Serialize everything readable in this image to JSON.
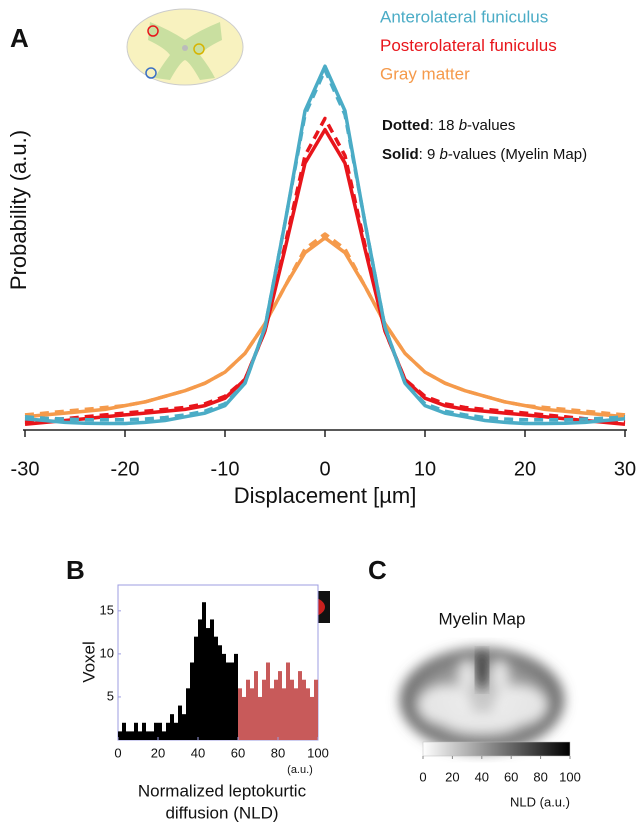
{
  "chart_data": [
    {
      "type": "line",
      "panel": "A",
      "x": [
        -30,
        -28,
        -26,
        -24,
        -22,
        -20,
        -18,
        -16,
        -14,
        -12,
        -10,
        -8,
        -6,
        -4,
        -2,
        0,
        2,
        4,
        6,
        8,
        10,
        12,
        14,
        16,
        18,
        20,
        22,
        24,
        26,
        28,
        30
      ],
      "xlim": [
        -30,
        30
      ],
      "xticks": [
        -30,
        -20,
        -10,
        0,
        10,
        20,
        30
      ],
      "ylim": [
        0,
        1
      ],
      "xlabel": "Displacement [µm]",
      "ylabel": "Probability (a.u.)",
      "series": [
        {
          "name": "Anterolateral funiculus",
          "color": "#4bacc6",
          "values": [
            0.025,
            0.02,
            0.015,
            0.013,
            0.012,
            0.012,
            0.015,
            0.02,
            0.03,
            0.04,
            0.06,
            0.12,
            0.27,
            0.55,
            0.85,
            0.97,
            0.85,
            0.55,
            0.27,
            0.12,
            0.06,
            0.04,
            0.03,
            0.02,
            0.015,
            0.012,
            0.012,
            0.013,
            0.015,
            0.02,
            0.025
          ],
          "dotted_values": [
            0.03,
            0.026,
            0.024,
            0.022,
            0.022,
            0.022,
            0.024,
            0.028,
            0.035,
            0.045,
            0.065,
            0.12,
            0.27,
            0.55,
            0.84,
            0.96,
            0.84,
            0.55,
            0.27,
            0.12,
            0.065,
            0.045,
            0.035,
            0.028,
            0.024,
            0.022,
            0.022,
            0.022,
            0.024,
            0.026,
            0.03
          ]
        },
        {
          "name": "Posterolateral funiculus",
          "color": "#e8151b",
          "values": [
            0.01,
            0.015,
            0.02,
            0.025,
            0.03,
            0.035,
            0.04,
            0.045,
            0.05,
            0.06,
            0.08,
            0.13,
            0.26,
            0.48,
            0.71,
            0.8,
            0.71,
            0.48,
            0.26,
            0.13,
            0.08,
            0.06,
            0.05,
            0.045,
            0.04,
            0.035,
            0.03,
            0.025,
            0.02,
            0.015,
            0.01
          ],
          "dotted_values": [
            0.015,
            0.02,
            0.025,
            0.03,
            0.035,
            0.04,
            0.045,
            0.05,
            0.055,
            0.065,
            0.085,
            0.13,
            0.26,
            0.49,
            0.73,
            0.83,
            0.73,
            0.49,
            0.26,
            0.13,
            0.085,
            0.065,
            0.055,
            0.05,
            0.045,
            0.04,
            0.035,
            0.03,
            0.025,
            0.02,
            0.015
          ]
        },
        {
          "name": "Gray matter",
          "color": "#f59a4b",
          "values": [
            0.03,
            0.035,
            0.04,
            0.045,
            0.05,
            0.06,
            0.07,
            0.085,
            0.1,
            0.12,
            0.15,
            0.2,
            0.28,
            0.38,
            0.47,
            0.51,
            0.47,
            0.38,
            0.28,
            0.2,
            0.15,
            0.12,
            0.1,
            0.085,
            0.07,
            0.06,
            0.05,
            0.045,
            0.04,
            0.035,
            0.03
          ],
          "dotted_values": [
            0.035,
            0.04,
            0.045,
            0.05,
            0.055,
            0.06,
            0.07,
            0.085,
            0.1,
            0.12,
            0.15,
            0.2,
            0.28,
            0.38,
            0.48,
            0.52,
            0.48,
            0.38,
            0.28,
            0.2,
            0.15,
            0.12,
            0.1,
            0.085,
            0.07,
            0.06,
            0.055,
            0.05,
            0.045,
            0.04,
            0.035
          ]
        }
      ],
      "notes": [
        [
          {
            "text": "Dotted",
            "bold": true
          },
          {
            "text": ": 18 "
          },
          {
            "text": "b",
            "italic": true
          },
          {
            "text": "-values"
          }
        ],
        [
          {
            "text": "Solid",
            "bold": true
          },
          {
            "text": ": 9 "
          },
          {
            "text": "b",
            "italic": true
          },
          {
            "text": "-values (Myelin Map)"
          }
        ]
      ]
    },
    {
      "type": "histogram",
      "panel": "B",
      "bins": [
        0,
        2,
        4,
        6,
        8,
        10,
        12,
        14,
        16,
        18,
        20,
        22,
        24,
        26,
        28,
        30,
        32,
        34,
        36,
        38,
        40,
        42,
        44,
        46,
        48,
        50,
        52,
        54,
        56,
        58,
        60,
        62,
        64,
        66,
        68,
        70,
        72,
        74,
        76,
        78,
        80,
        82,
        84,
        86,
        88,
        90,
        92,
        94,
        96,
        98,
        100
      ],
      "xlim": [
        0,
        100
      ],
      "xticks": [
        0,
        20,
        40,
        60,
        80,
        100
      ],
      "ylim": [
        0,
        18
      ],
      "yticks": [
        5,
        10,
        15
      ],
      "xunit": "(a.u.)",
      "xlabel": [
        "Normalized leptokurtic",
        "diffusion (NLD)"
      ],
      "ylabel": "Voxel",
      "series": [
        {
          "color": "#000000",
          "values": [
            1,
            2,
            1,
            1,
            2,
            1,
            2,
            1,
            1,
            2,
            2,
            1,
            2,
            3,
            2,
            4,
            3,
            6,
            9,
            12,
            14,
            16,
            13,
            14,
            12,
            11,
            10,
            9,
            9,
            10,
            null,
            null,
            null,
            null,
            null,
            null,
            null,
            null,
            null,
            null,
            null,
            null,
            null,
            null,
            null,
            null,
            null,
            null,
            null,
            null
          ]
        },
        {
          "color": "#c85a5a",
          "values": [
            null,
            null,
            null,
            null,
            null,
            null,
            null,
            null,
            null,
            null,
            null,
            null,
            null,
            null,
            null,
            null,
            null,
            null,
            null,
            null,
            null,
            null,
            null,
            null,
            null,
            null,
            null,
            null,
            null,
            null,
            6,
            5,
            7,
            6,
            8,
            5,
            7,
            9,
            6,
            7,
            8,
            6,
            9,
            7,
            6,
            8,
            7,
            6,
            5,
            7
          ]
        }
      ]
    },
    {
      "type": "colorbar",
      "panel": "C",
      "title": "Myelin Map",
      "xlim": [
        0,
        100
      ],
      "xticks": [
        0,
        20,
        40,
        60,
        80,
        100
      ],
      "xlabel": "NLD (a.u.)",
      "colors": [
        "#ffffff",
        "#000000"
      ]
    }
  ]
}
